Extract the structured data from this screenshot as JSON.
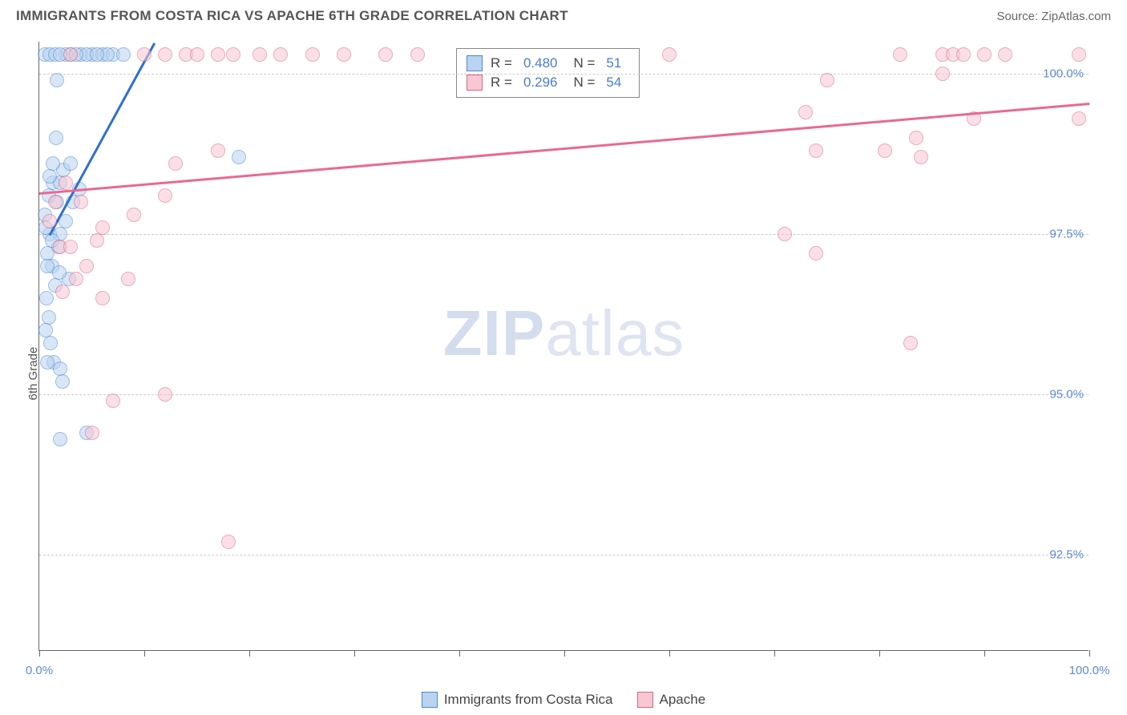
{
  "header": {
    "title": "IMMIGRANTS FROM COSTA RICA VS APACHE 6TH GRADE CORRELATION CHART",
    "source": "Source: ZipAtlas.com"
  },
  "yaxis": {
    "label": "6th Grade"
  },
  "watermark": {
    "zip": "ZIP",
    "atlas": "atlas"
  },
  "chart": {
    "type": "scatter",
    "background_color": "#ffffff",
    "grid_color": "#cccccc",
    "axis_color": "#666666",
    "xlim": [
      0,
      100
    ],
    "ylim": [
      91.0,
      100.5
    ],
    "ytick_values": [
      92.5,
      95.0,
      97.5,
      100.0
    ],
    "ytick_labels": [
      "92.5%",
      "95.0%",
      "97.5%",
      "100.0%"
    ],
    "xtick_values": [
      0,
      10,
      20,
      30,
      40,
      50,
      60,
      70,
      80,
      90,
      100
    ],
    "xtick_labels_shown": {
      "0": "0.0%",
      "100": "100.0%"
    },
    "marker_radius": 9,
    "marker_stroke_width": 1.5,
    "series": [
      {
        "name": "Immigrants from Costa Rica",
        "fill_color": "#b9d3f0",
        "stroke_color": "#4a88d6",
        "fill_opacity": 0.55,
        "R": "0.480",
        "N": "51",
        "trend": {
          "x1": 1.0,
          "y1": 97.5,
          "x2": 11.0,
          "y2": 100.5,
          "color": "#2f6fd0",
          "width": 3
        },
        "points": [
          [
            1.0,
            97.5
          ],
          [
            1.2,
            97.0
          ],
          [
            1.5,
            96.7
          ],
          [
            0.8,
            97.2
          ],
          [
            0.5,
            97.8
          ],
          [
            0.9,
            98.1
          ],
          [
            1.3,
            98.3
          ],
          [
            2.0,
            98.3
          ],
          [
            1.7,
            98.0
          ],
          [
            2.3,
            98.5
          ],
          [
            3.0,
            98.6
          ],
          [
            3.0,
            100.3
          ],
          [
            4.0,
            100.3
          ],
          [
            5.0,
            100.3
          ],
          [
            6.0,
            100.3
          ],
          [
            4.5,
            100.3
          ],
          [
            2.5,
            100.3
          ],
          [
            3.5,
            100.3
          ],
          [
            0.7,
            96.5
          ],
          [
            0.9,
            96.2
          ],
          [
            1.1,
            95.8
          ],
          [
            1.4,
            95.5
          ],
          [
            2.0,
            95.4
          ],
          [
            2.2,
            95.2
          ],
          [
            0.8,
            95.5
          ],
          [
            0.6,
            96.0
          ],
          [
            2.0,
            97.5
          ],
          [
            2.5,
            97.7
          ],
          [
            1.8,
            97.3
          ],
          [
            3.2,
            98.0
          ],
          [
            3.8,
            98.2
          ],
          [
            1.0,
            98.4
          ],
          [
            1.3,
            98.6
          ],
          [
            1.6,
            99.0
          ],
          [
            0.5,
            100.3
          ],
          [
            1.0,
            100.3
          ],
          [
            1.5,
            100.3
          ],
          [
            2.0,
            100.3
          ],
          [
            7.0,
            100.3
          ],
          [
            8.0,
            100.3
          ],
          [
            6.5,
            100.3
          ],
          [
            5.5,
            100.3
          ],
          [
            2.0,
            94.3
          ],
          [
            4.5,
            94.4
          ],
          [
            0.8,
            97.0
          ],
          [
            0.6,
            97.6
          ],
          [
            1.2,
            97.4
          ],
          [
            1.7,
            99.9
          ],
          [
            19.0,
            98.7
          ],
          [
            2.8,
            96.8
          ],
          [
            1.9,
            96.9
          ]
        ]
      },
      {
        "name": "Apache",
        "fill_color": "#f7c8d2",
        "stroke_color": "#e06284",
        "fill_opacity": 0.55,
        "R": "0.296",
        "N": "54",
        "trend": {
          "x1": 0.0,
          "y1": 98.15,
          "x2": 100.0,
          "y2": 99.55,
          "color": "#e86a90",
          "width": 3
        },
        "points": [
          [
            2.0,
            97.3
          ],
          [
            3.0,
            97.3
          ],
          [
            4.0,
            98.0
          ],
          [
            6.0,
            97.6
          ],
          [
            5.0,
            94.4
          ],
          [
            7.0,
            94.9
          ],
          [
            8.5,
            96.8
          ],
          [
            9.0,
            97.8
          ],
          [
            12.0,
            98.1
          ],
          [
            13.0,
            98.6
          ],
          [
            17.0,
            98.8
          ],
          [
            10.0,
            100.3
          ],
          [
            12.0,
            100.3
          ],
          [
            14.0,
            100.3
          ],
          [
            15.0,
            100.3
          ],
          [
            17.0,
            100.3
          ],
          [
            18.5,
            100.3
          ],
          [
            21.0,
            100.3
          ],
          [
            23.0,
            100.3
          ],
          [
            26.0,
            100.3
          ],
          [
            29.0,
            100.3
          ],
          [
            33.0,
            100.3
          ],
          [
            36.0,
            100.3
          ],
          [
            60.0,
            100.3
          ],
          [
            73.0,
            99.4
          ],
          [
            75.0,
            99.9
          ],
          [
            74.0,
            98.8
          ],
          [
            71.0,
            97.5
          ],
          [
            74.0,
            97.2
          ],
          [
            82.0,
            100.3
          ],
          [
            83.0,
            95.8
          ],
          [
            86.0,
            100.0
          ],
          [
            86.0,
            100.3
          ],
          [
            87.0,
            100.3
          ],
          [
            88.0,
            100.3
          ],
          [
            89.0,
            99.3
          ],
          [
            90.0,
            100.3
          ],
          [
            92.0,
            100.3
          ],
          [
            80.5,
            98.8
          ],
          [
            84.0,
            98.7
          ],
          [
            99.0,
            100.3
          ],
          [
            99.0,
            99.3
          ],
          [
            18.0,
            92.7
          ],
          [
            12.0,
            95.0
          ],
          [
            4.5,
            97.0
          ],
          [
            5.5,
            97.4
          ],
          [
            2.5,
            98.3
          ],
          [
            1.5,
            98.0
          ],
          [
            3.5,
            96.8
          ],
          [
            2.2,
            96.6
          ],
          [
            6.0,
            96.5
          ],
          [
            1.0,
            97.7
          ],
          [
            3.0,
            100.3
          ],
          [
            83.5,
            99.0
          ]
        ]
      }
    ]
  },
  "stats_box": {
    "rows": [
      {
        "swatch_fill": "#b9d3f0",
        "swatch_stroke": "#4a88d6",
        "r_label": "R =",
        "r_val": "0.480",
        "n_label": "N =",
        "n_val": "51"
      },
      {
        "swatch_fill": "#f7c8d2",
        "swatch_stroke": "#e06284",
        "r_label": "R =",
        "r_val": "0.296",
        "n_label": "N =",
        "n_val": "54"
      }
    ]
  },
  "legend": {
    "items": [
      {
        "swatch_fill": "#b9d3f0",
        "swatch_stroke": "#4a88d6",
        "label": "Immigrants from Costa Rica"
      },
      {
        "swatch_fill": "#f7c8d2",
        "swatch_stroke": "#e06284",
        "label": "Apache"
      }
    ]
  }
}
